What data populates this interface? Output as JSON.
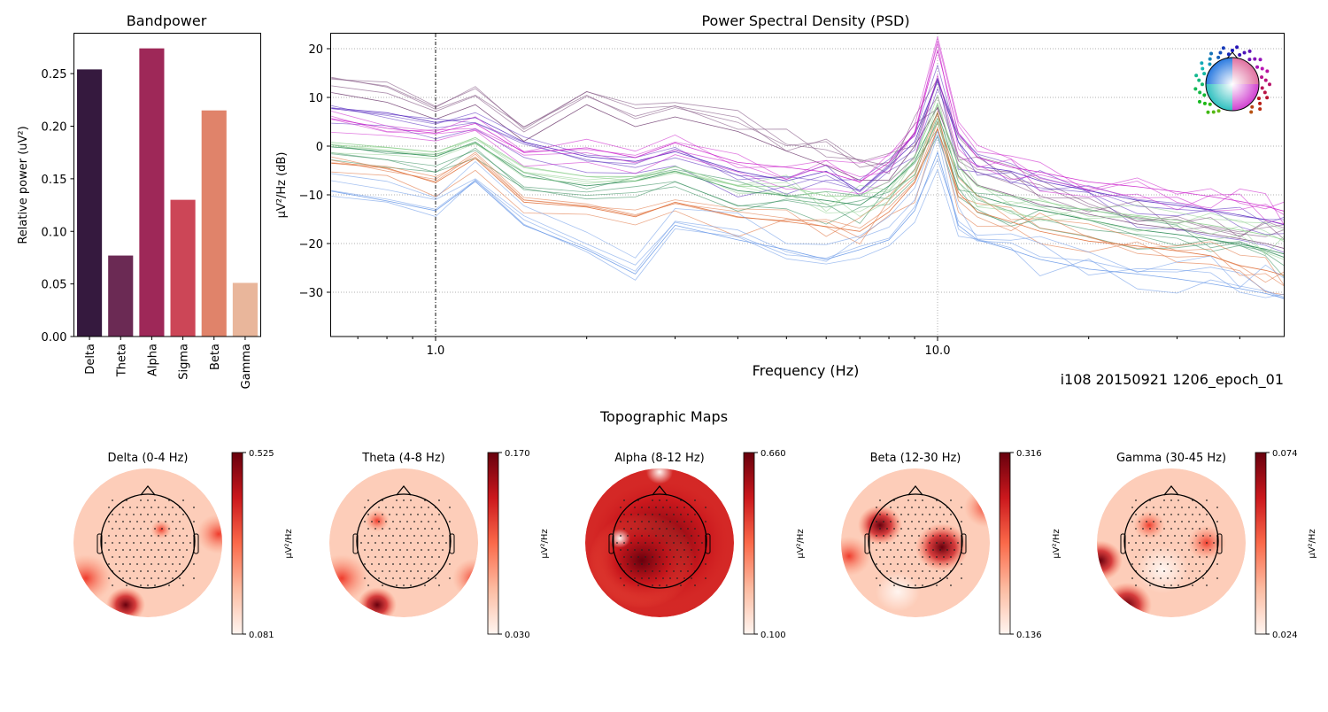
{
  "chart_data": [
    {
      "type": "bar",
      "title": "Bandpower",
      "xlabel": "",
      "ylabel": "Relative power (uV²)",
      "categories": [
        "Delta",
        "Theta",
        "Alpha",
        "Sigma",
        "Beta",
        "Gamma"
      ],
      "values": [
        0.254,
        0.077,
        0.274,
        0.13,
        0.215,
        0.051
      ],
      "colors": [
        "#35193e",
        "#6b2a54",
        "#9e2858",
        "#cc4657",
        "#e0836a",
        "#e9b69b"
      ],
      "ylim": [
        0,
        0.288
      ],
      "yticks": [
        "0.00",
        "0.05",
        "0.10",
        "0.15",
        "0.20",
        "0.25"
      ],
      "grid": false
    },
    {
      "type": "line",
      "title": "Power Spectral Density (PSD)",
      "xlabel": "Frequency (Hz)",
      "ylabel": "µV²/Hz (dB)",
      "xscale": "log",
      "xlim": [
        0.62,
        49
      ],
      "ylim": [
        -39,
        23
      ],
      "xticks": [
        "1.0",
        "10.0"
      ],
      "yticks": [
        "−30",
        "−20",
        "−10",
        "0",
        "10",
        "20"
      ],
      "grid": true,
      "vline_at": 1.0,
      "legend": "sensor-layout inset top-right",
      "x": [
        0.62,
        0.8,
        1.0,
        1.2,
        1.5,
        2,
        2.5,
        3,
        4,
        5,
        6,
        7,
        8,
        9,
        10,
        11,
        12,
        14,
        16,
        20,
        25,
        30,
        35,
        40,
        45,
        49
      ],
      "series": [
        {
          "color": "#7a4a7a",
          "values": [
            13,
            11,
            7.5,
            10.5,
            3,
            10.5,
            6,
            8,
            5,
            1,
            -2,
            -5,
            -5,
            2,
            10,
            -2,
            -6,
            -8,
            -10,
            -12,
            -14,
            -15,
            -16,
            -17,
            -18,
            -19
          ]
        },
        {
          "color": "#5a2ec0",
          "values": [
            7,
            6,
            4,
            5,
            0,
            -3,
            -4,
            -2,
            -6,
            -8,
            -6,
            -10,
            -5,
            0,
            13,
            0,
            -5,
            -6,
            -8,
            -10,
            -12,
            -13,
            -14,
            -15,
            -16,
            -17
          ]
        },
        {
          "color": "#cc22cc",
          "values": [
            5,
            3,
            2,
            4,
            -2,
            -1,
            -3,
            0,
            -4,
            -5,
            -6,
            -8,
            -4,
            2,
            19,
            2,
            -3,
            -5,
            -6,
            -8,
            -9,
            -10,
            -11,
            -12,
            -13,
            -14
          ]
        },
        {
          "color": "#2e8b57",
          "values": [
            -2,
            -3,
            -4,
            -1,
            -8,
            -10,
            -9,
            -7,
            -11,
            -12,
            -13,
            -14,
            -10,
            -5,
            5,
            -8,
            -12,
            -14,
            -15,
            -17,
            -19,
            -20,
            -21,
            -22,
            -23,
            -24
          ]
        },
        {
          "color": "#e0703a",
          "values": [
            -4,
            -5,
            -8,
            -3,
            -12,
            -13,
            -15,
            -12,
            -15,
            -16,
            -17,
            -18,
            -14,
            -8,
            3,
            -10,
            -14,
            -16,
            -18,
            -20,
            -21,
            -22,
            -23,
            -25,
            -26,
            -27
          ]
        },
        {
          "color": "#6a9ae8",
          "values": [
            -8,
            -10,
            -12,
            -6,
            -15,
            -20,
            -25,
            -15,
            -18,
            -20,
            -22,
            -20,
            -18,
            -12,
            0,
            -15,
            -18,
            -20,
            -22,
            -24,
            -25,
            -26,
            -27,
            -28,
            -29,
            -30
          ]
        },
        {
          "color": "#90d090",
          "values": [
            -1,
            -2,
            -3,
            0,
            -6,
            -8,
            -8,
            -6,
            -10,
            -10,
            -12,
            -12,
            -9,
            -4,
            7,
            -6,
            -10,
            -12,
            -13,
            -15,
            -16,
            -17,
            -18,
            -19,
            -20,
            -21
          ]
        }
      ]
    }
  ],
  "subject_label": "i108 20150921 1206_epoch_01",
  "topomaps": {
    "title": "Topographic Maps",
    "colorbar_label": "µV²/Hz",
    "colormap": "Reds",
    "maps": [
      {
        "title": "Delta (0-4 Hz)",
        "vmax": "0.525",
        "vmin": "0.081"
      },
      {
        "title": "Theta (4-8 Hz)",
        "vmax": "0.170",
        "vmin": "0.030"
      },
      {
        "title": "Alpha (8-12 Hz)",
        "vmax": "0.660",
        "vmin": "0.100"
      },
      {
        "title": "Beta (12-30 Hz)",
        "vmax": "0.316",
        "vmin": "0.136"
      },
      {
        "title": "Gamma (30-45 Hz)",
        "vmax": "0.074",
        "vmin": "0.024"
      }
    ]
  }
}
